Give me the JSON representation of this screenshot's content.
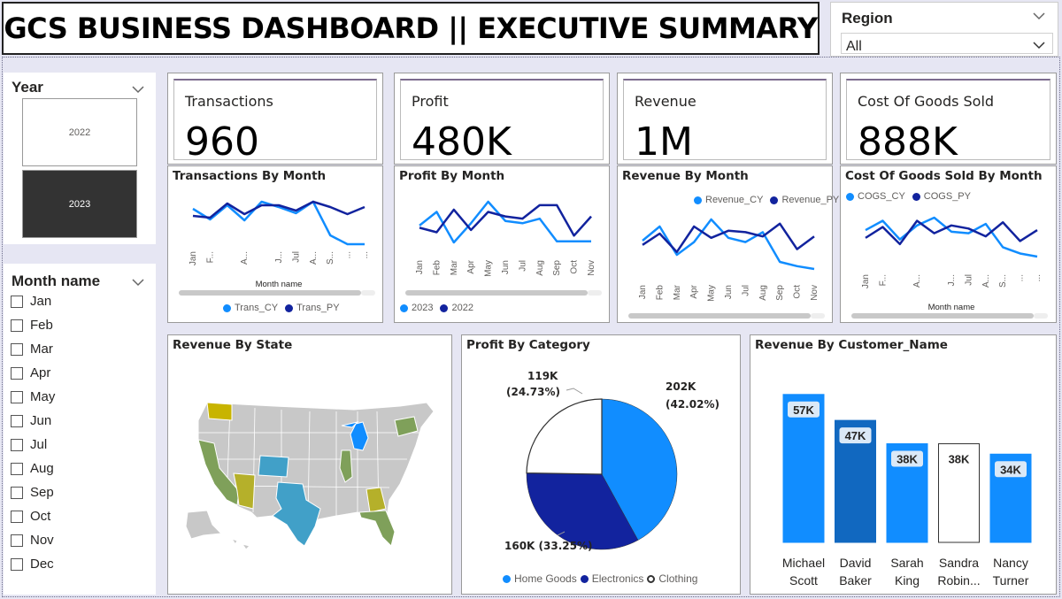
{
  "title": "GCS BUSINESS DASHBOARD || EXECUTIVE SUMMARY",
  "region_slicer": {
    "title": "Region",
    "selected": "All"
  },
  "year_slicer": {
    "title": "Year",
    "options": [
      "2022",
      "2023"
    ],
    "selected": "2023"
  },
  "month_slicer": {
    "title": "Month name",
    "items": [
      "Jan",
      "Feb",
      "Mar",
      "Apr",
      "May",
      "Jun",
      "Jul",
      "Aug",
      "Sep",
      "Oct",
      "Nov",
      "Dec"
    ]
  },
  "kpis": [
    {
      "label": "Transactions",
      "value": "960"
    },
    {
      "label": "Profit",
      "value": "480K"
    },
    {
      "label": "Revenue",
      "value": "1M"
    },
    {
      "label": "Cost Of Goods Sold",
      "value": "888K"
    }
  ],
  "colors": {
    "cy": "#118dff",
    "py": "#12239e",
    "third": "#ffffff",
    "scroll": "#c8c8c8"
  },
  "chart_data": [
    {
      "type": "line",
      "title": "Transactions By Month",
      "xlabel": "Month name",
      "x_tick_labels": [
        "Jan",
        "F...",
        "",
        "A...",
        "",
        "J...",
        "Jul",
        "A...",
        "S...",
        "...",
        "..."
      ],
      "legend_position": "bottom",
      "series": [
        {
          "name": "Trans_CY",
          "values": [
            88,
            76,
            92,
            75,
            96,
            90,
            83,
            96,
            58,
            48,
            48
          ]
        },
        {
          "name": "Trans_PY",
          "values": [
            80,
            78,
            94,
            82,
            92,
            92,
            86,
            96,
            90,
            82,
            90
          ]
        }
      ]
    },
    {
      "type": "line",
      "title": "Profit By Month",
      "x_tick_labels": [
        "Jan",
        "Feb",
        "Mar",
        "Apr",
        "May",
        "Jun",
        "Jul",
        "Aug",
        "Sep",
        "Oct",
        "Nov"
      ],
      "legend_position": "bottom",
      "series": [
        {
          "name": "2023",
          "values": [
            82,
            94,
            67,
            84,
            103,
            86,
            84,
            88,
            68,
            68,
            68
          ]
        },
        {
          "name": "2022",
          "values": [
            80,
            76,
            96,
            78,
            94,
            90,
            88,
            100,
            100,
            73,
            90
          ]
        }
      ]
    },
    {
      "type": "line",
      "title": "Revenue By Month",
      "x_tick_labels": [
        "Jan",
        "Feb",
        "Mar",
        "Apr",
        "May",
        "Jun",
        "Jul",
        "Aug",
        "Sep",
        "Oct",
        "Nov"
      ],
      "legend_position": "top-right",
      "series": [
        {
          "name": "Revenue_CY",
          "values": [
            70,
            90,
            50,
            68,
            100,
            74,
            68,
            82,
            40,
            34,
            30
          ]
        },
        {
          "name": "Revenue_PY",
          "values": [
            64,
            80,
            54,
            90,
            74,
            84,
            82,
            76,
            94,
            58,
            76
          ]
        }
      ]
    },
    {
      "type": "line",
      "title": "Cost Of Goods Sold By Month",
      "xlabel": "Month name",
      "x_tick_labels": [
        "Jan",
        "F...",
        "",
        "A...",
        "",
        "J...",
        "Jul",
        "A...",
        "S...",
        "...",
        "..."
      ],
      "legend_position": "top-left",
      "series": [
        {
          "name": "COGS_CY",
          "values": [
            84,
            96,
            72,
            90,
            100,
            82,
            80,
            92,
            62,
            54,
            50
          ]
        },
        {
          "name": "COGS_PY",
          "values": [
            74,
            88,
            66,
            96,
            80,
            90,
            86,
            76,
            94,
            70,
            84
          ]
        }
      ]
    },
    {
      "type": "pie",
      "title": "Profit By Category",
      "legend_position": "bottom",
      "slices": [
        {
          "name": "Home Goods",
          "value": 202,
          "label": "202K",
          "percent_label": "(42.02%)"
        },
        {
          "name": "Electronics",
          "value": 160,
          "label": "160K (33.25%)"
        },
        {
          "name": "Clothing",
          "value": 119,
          "label": "119K",
          "percent_label": "(24.73%)"
        }
      ]
    },
    {
      "type": "bar",
      "title": "Revenue By Customer_Name",
      "categories": [
        "Michael Scott",
        "David Baker",
        "Sarah King",
        "Sandra Robin...",
        "Nancy Turner"
      ],
      "category_lines": [
        [
          "Michael",
          "Scott"
        ],
        [
          "David",
          "Baker"
        ],
        [
          "Sarah",
          "King"
        ],
        [
          "Sandra",
          "Robin..."
        ],
        [
          "Nancy",
          "Turner"
        ]
      ],
      "values": [
        57,
        47,
        38,
        38,
        34
      ],
      "labels": [
        "57K",
        "47K",
        "38K",
        "38K",
        "34K"
      ],
      "ylim": [
        0,
        60
      ]
    }
  ],
  "map": {
    "title": "Revenue By State",
    "highlighted_states": [
      {
        "name": "Washington",
        "color": "#c8b400"
      },
      {
        "name": "California",
        "color": "#7fa05a"
      },
      {
        "name": "Arizona",
        "color": "#b5b02a"
      },
      {
        "name": "Colorado",
        "color": "#41a0c8"
      },
      {
        "name": "Texas",
        "color": "#41a0c8"
      },
      {
        "name": "Michigan",
        "color": "#118dff"
      },
      {
        "name": "Illinois",
        "color": "#7fa05a"
      },
      {
        "name": "New York",
        "color": "#7fa05a"
      },
      {
        "name": "Georgia",
        "color": "#b5b02a"
      },
      {
        "name": "Florida",
        "color": "#7fa05a"
      }
    ]
  }
}
